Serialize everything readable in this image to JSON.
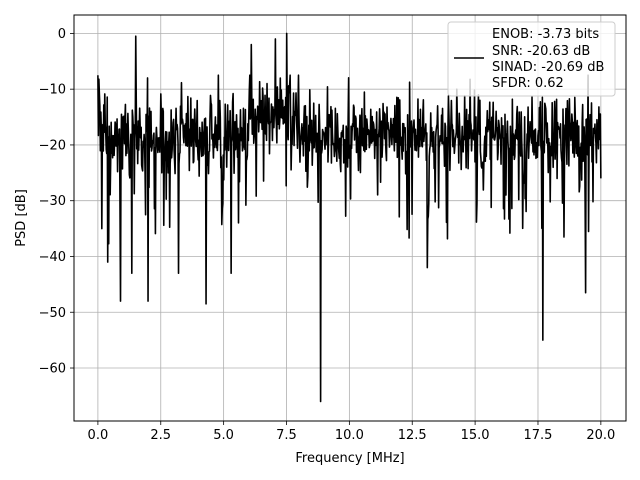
{
  "chart_data": {
    "type": "line",
    "title": "",
    "xlabel": "Frequency [MHz]",
    "ylabel": "PSD [dB]",
    "xlim": [
      -0.95,
      21.0
    ],
    "ylim": [
      -69.5,
      3.3
    ],
    "x_ticks": [
      0.0,
      2.5,
      5.0,
      7.5,
      10.0,
      12.5,
      15.0,
      17.5,
      20.0
    ],
    "x_tick_labels": [
      "0.0",
      "2.5",
      "5.0",
      "7.5",
      "10.0",
      "12.5",
      "15.0",
      "17.5",
      "20.0"
    ],
    "y_ticks": [
      0,
      -10,
      -20,
      -30,
      -40,
      -50,
      -60
    ],
    "y_tick_labels": [
      "0",
      "−10",
      "−20",
      "−30",
      "−40",
      "−50",
      "−60"
    ],
    "grid": true,
    "legend_position": "top-right",
    "legend_lines": [
      "ENOB: -3.73 bits",
      "SNR: -20.63 dB",
      "SINAD: -20.69 dB",
      "SFDR: 0.62"
    ],
    "line_color": "#000000",
    "series": [
      {
        "x_range": [
          0.0,
          20.0
        ],
        "num_points": 1024,
        "baseline_db": -18.5,
        "noise_spread_db": 8,
        "notable_points": [
          {
            "x": 0.0,
            "y": -7.5
          },
          {
            "x": 0.15,
            "y": -35
          },
          {
            "x": 0.4,
            "y": -41
          },
          {
            "x": 0.9,
            "y": -48
          },
          {
            "x": 1.35,
            "y": -43
          },
          {
            "x": 1.5,
            "y": -0.5
          },
          {
            "x": 2.0,
            "y": -48
          },
          {
            "x": 3.2,
            "y": -43
          },
          {
            "x": 4.3,
            "y": -48.5
          },
          {
            "x": 5.3,
            "y": -43
          },
          {
            "x": 6.1,
            "y": -2
          },
          {
            "x": 7.05,
            "y": -1
          },
          {
            "x": 7.5,
            "y": 0
          },
          {
            "x": 8.85,
            "y": -66
          },
          {
            "x": 13.1,
            "y": -42
          },
          {
            "x": 17.7,
            "y": -55
          },
          {
            "x": 19.4,
            "y": -46.5
          },
          {
            "x": 20.0,
            "y": -26
          }
        ]
      }
    ]
  }
}
